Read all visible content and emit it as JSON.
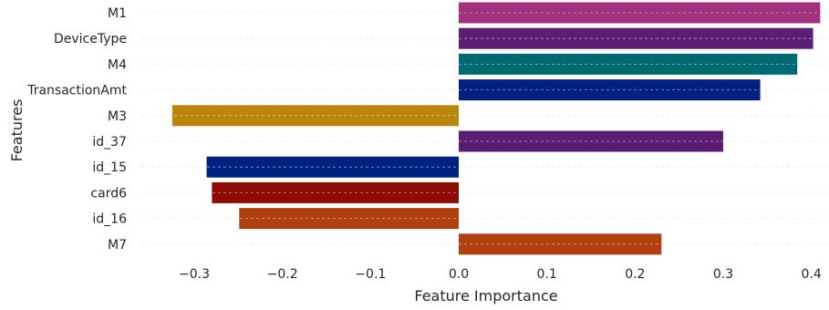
{
  "chart_data": {
    "type": "bar",
    "orientation": "horizontal",
    "title": "",
    "xlabel": "Feature Importance",
    "ylabel": "Features",
    "xlim": [
      -0.36,
      0.42
    ],
    "grid": true,
    "legend": "none",
    "x_ticks": [
      -0.3,
      -0.2,
      -0.1,
      0.0,
      0.1,
      0.2,
      0.3,
      0.4
    ],
    "x_tick_labels": [
      "−0.3",
      "−0.2",
      "−0.1",
      "0.0",
      "0.1",
      "0.2",
      "0.3",
      "0.4"
    ],
    "categories": [
      "M1",
      "DeviceType",
      "M4",
      "TransactionAmt",
      "M3",
      "id_37",
      "id_15",
      "card6",
      "id_16",
      "M7"
    ],
    "values": [
      0.41,
      0.402,
      0.384,
      0.342,
      -0.325,
      0.3,
      -0.286,
      -0.28,
      -0.249,
      0.23
    ],
    "colors": [
      "#A1307F",
      "#5B1D72",
      "#006A74",
      "#02207E",
      "#B8860B",
      "#5B1D72",
      "#02207E",
      "#8E0A05",
      "#B0400F",
      "#B0400F"
    ]
  }
}
